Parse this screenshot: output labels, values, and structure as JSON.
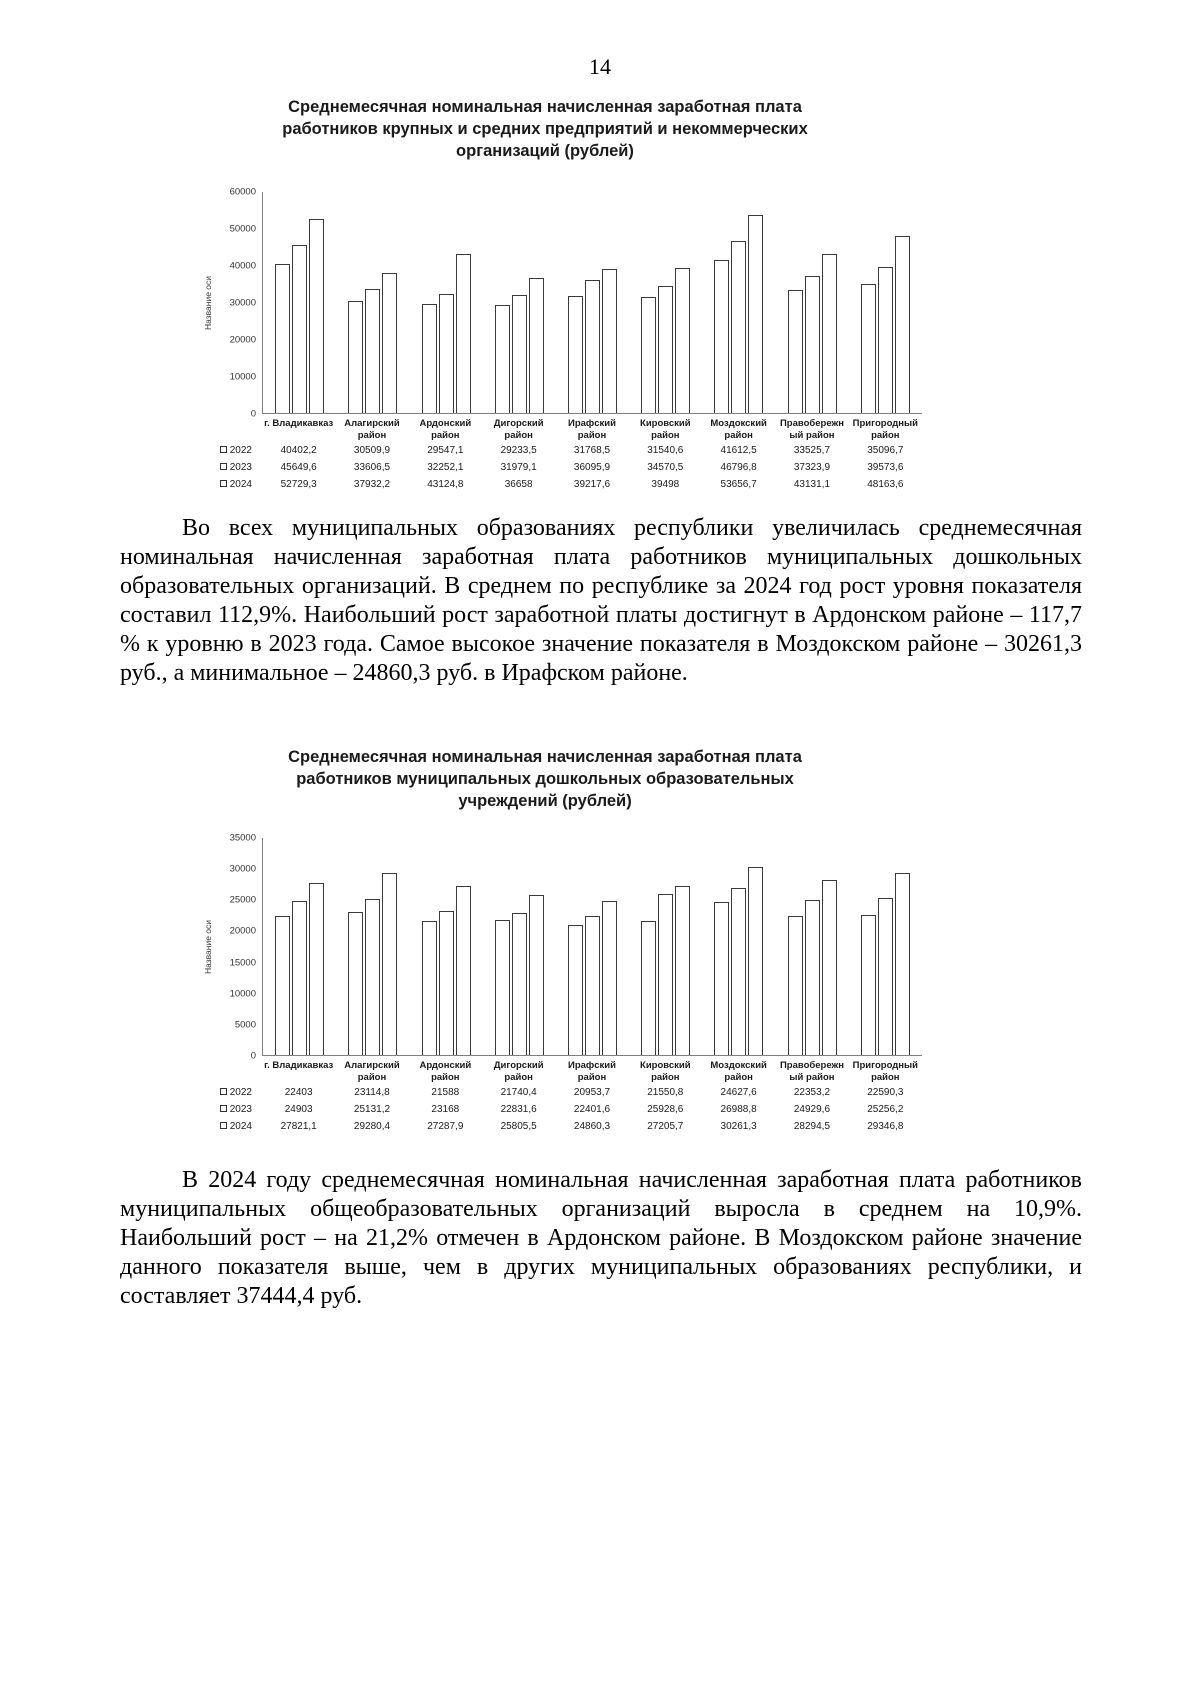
{
  "page_number": "14",
  "paragraphs": [
    {
      "text": "Во всех муниципальных образованиях республики увеличилась среднемесячная номинальная начисленная заработная плата работников муниципальных дошкольных образовательных организаций. В среднем по республике за 2024 год рост уровня показателя составил 112,9%. Наибольший рост заработной платы достигнут в Ардонском районе – 117,7 % к уровню в 2023 года. Самое высокое значение показателя в Моздокском районе – 30261,3 руб., а минимальное – 24860,3 руб. в Ирафском районе."
    },
    {
      "text": "В 2024 году среднемесячная номинальная начисленная заработная плата работников муниципальных общеобразовательных организаций выросла в среднем на 10,9%. Наибольший рост – на 21,2% отмечен в Ардонском районе. В Моздокском районе значение данного показателя выше, чем в других муниципальных образованиях республики, и составляет 37444,4 руб."
    }
  ],
  "chart_data": [
    {
      "type": "bar",
      "title": "Среднемесячная номинальная начисленная заработная плата работников крупных и средних предприятий и некоммерческих организаций (рублей)",
      "ylabel": "Название оси",
      "xlabel": "",
      "ylim": [
        0,
        60000
      ],
      "ytick_step": 10000,
      "grid": false,
      "legend_position": "table-left",
      "categories": [
        "г. Владикавказ",
        "Алагирский район",
        "Ардонский район",
        "Дигорский район",
        "Ирафский район",
        "Кировский район",
        "Моздокский район",
        "Правобережный район",
        "Пригородный район"
      ],
      "series": [
        {
          "name": "2022",
          "values": [
            "40402,2",
            "30509,9",
            "29547,1",
            "29233,5",
            "31768,5",
            "31540,6",
            "41612,5",
            "33525,7",
            "35096,7"
          ]
        },
        {
          "name": "2023",
          "values": [
            "45649,6",
            "33606,5",
            "32252,1",
            "31979,1",
            "36095,9",
            "34570,5",
            "46796,8",
            "37323,9",
            "39573,6"
          ]
        },
        {
          "name": "2024",
          "values": [
            "52729,3",
            "37932,2",
            "43124,8",
            "36658",
            "39217,6",
            "39498",
            "53656,7",
            "43131,1",
            "48163,6"
          ]
        }
      ]
    },
    {
      "type": "bar",
      "title": "Среднемесячная номинальная начисленная заработная плата работников муниципальных дошкольных образовательных учреждений (рублей)",
      "ylabel": "Название оси",
      "xlabel": "",
      "ylim": [
        0,
        35000
      ],
      "ytick_step": 5000,
      "grid": false,
      "legend_position": "table-left",
      "categories": [
        "г. Владикавказ",
        "Алагирский район",
        "Ардонский район",
        "Дигорский район",
        "Ирафский район",
        "Кировский район",
        "Моздокский район",
        "Правобережный район",
        "Пригородный район"
      ],
      "series": [
        {
          "name": "2022",
          "values": [
            "22403",
            "23114,8",
            "21588",
            "21740,4",
            "20953,7",
            "21550,8",
            "24627,6",
            "22353,2",
            "22590,3"
          ]
        },
        {
          "name": "2023",
          "values": [
            "24903",
            "25131,2",
            "23168",
            "22831,6",
            "22401,6",
            "25928,6",
            "26988,8",
            "24929,6",
            "25256,2"
          ]
        },
        {
          "name": "2024",
          "values": [
            "27821,1",
            "29280,4",
            "27287,9",
            "25805,5",
            "24860,3",
            "27205,7",
            "30261,3",
            "28294,5",
            "29346,8"
          ]
        }
      ]
    }
  ]
}
